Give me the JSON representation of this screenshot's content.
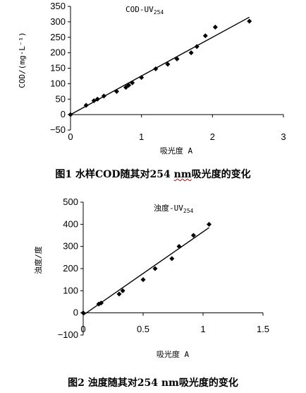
{
  "chart_data": [
    {
      "type": "scatter",
      "title": "COD-UV",
      "title_sub": "254",
      "xlabel": "吸光度 A",
      "ylabel": "COD/(mg·L⁻¹)",
      "xlim": [
        0,
        3
      ],
      "ylim": [
        -50,
        350
      ],
      "xticks": [
        "0",
        "1",
        "2",
        "3"
      ],
      "yticks": [
        "350",
        "300",
        "250",
        "200",
        "150",
        "100",
        "50",
        "0",
        "−50"
      ],
      "points": [
        {
          "x": 0.0,
          "y": 0
        },
        {
          "x": 0.22,
          "y": 30
        },
        {
          "x": 0.33,
          "y": 45
        },
        {
          "x": 0.38,
          "y": 50
        },
        {
          "x": 0.47,
          "y": 60
        },
        {
          "x": 0.65,
          "y": 75
        },
        {
          "x": 0.78,
          "y": 88
        },
        {
          "x": 0.82,
          "y": 95
        },
        {
          "x": 0.87,
          "y": 103
        },
        {
          "x": 1.0,
          "y": 120
        },
        {
          "x": 1.2,
          "y": 148
        },
        {
          "x": 1.37,
          "y": 163
        },
        {
          "x": 1.5,
          "y": 180
        },
        {
          "x": 1.7,
          "y": 200
        },
        {
          "x": 1.78,
          "y": 220
        },
        {
          "x": 1.9,
          "y": 255
        },
        {
          "x": 2.04,
          "y": 283
        },
        {
          "x": 2.52,
          "y": 302
        }
      ],
      "fit": {
        "x": [
          0,
          2.52
        ],
        "y": [
          0,
          315
        ]
      },
      "caption_prefix": "图1",
      "caption_text": "水样COD随其对254 nm吸光度的变化"
    },
    {
      "type": "scatter",
      "title": "浊度-UV",
      "title_sub": "254",
      "xlabel": "吸光度 A",
      "ylabel": "浊度/度",
      "xlim": [
        0,
        1.5
      ],
      "ylim": [
        -100,
        500
      ],
      "xticks": [
        "0",
        "0.5",
        "1",
        "1.5"
      ],
      "yticks": [
        "500",
        "400",
        "300",
        "200",
        "100",
        "0",
        "−100"
      ],
      "points": [
        {
          "x": 0.0,
          "y": 0
        },
        {
          "x": 0.13,
          "y": 40
        },
        {
          "x": 0.15,
          "y": 45
        },
        {
          "x": 0.3,
          "y": 85
        },
        {
          "x": 0.33,
          "y": 100
        },
        {
          "x": 0.5,
          "y": 150
        },
        {
          "x": 0.6,
          "y": 200
        },
        {
          "x": 0.74,
          "y": 245
        },
        {
          "x": 0.8,
          "y": 300
        },
        {
          "x": 0.92,
          "y": 350
        },
        {
          "x": 1.05,
          "y": 400
        }
      ],
      "fit": {
        "x": [
          0,
          1.05
        ],
        "y": [
          -10,
          385
        ]
      },
      "caption_prefix": "图2",
      "caption_text": "浊度随其对254 nm吸光度的变化"
    }
  ]
}
